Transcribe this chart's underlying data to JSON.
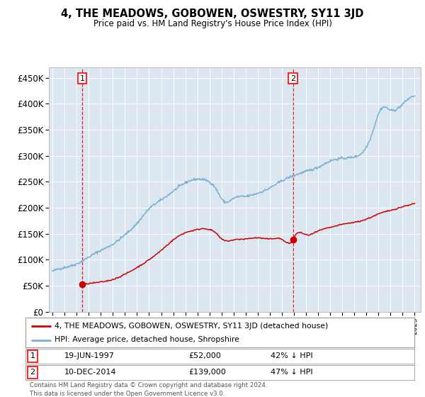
{
  "title": "4, THE MEADOWS, GOBOWEN, OSWESTRY, SY11 3JD",
  "subtitle": "Price paid vs. HM Land Registry's House Price Index (HPI)",
  "sale1_date": "19-JUN-1997",
  "sale1_price": 52000,
  "sale1_label": "42% ↓ HPI",
  "sale2_date": "10-DEC-2014",
  "sale2_price": 139000,
  "sale2_label": "47% ↓ HPI",
  "legend_line1": "4, THE MEADOWS, GOBOWEN, OSWESTRY, SY11 3JD (detached house)",
  "legend_line2": "HPI: Average price, detached house, Shropshire",
  "footnote1": "Contains HM Land Registry data © Crown copyright and database right 2024.",
  "footnote2": "This data is licensed under the Open Government Licence v3.0.",
  "hpi_color": "#7bafd4",
  "price_color": "#cc0000",
  "background_color": "#dce6f0",
  "ylim": [
    0,
    470000
  ],
  "yticks": [
    0,
    50000,
    100000,
    150000,
    200000,
    250000,
    300000,
    350000,
    400000,
    450000
  ],
  "sale1_x": 1997.46,
  "sale2_x": 2014.92
}
